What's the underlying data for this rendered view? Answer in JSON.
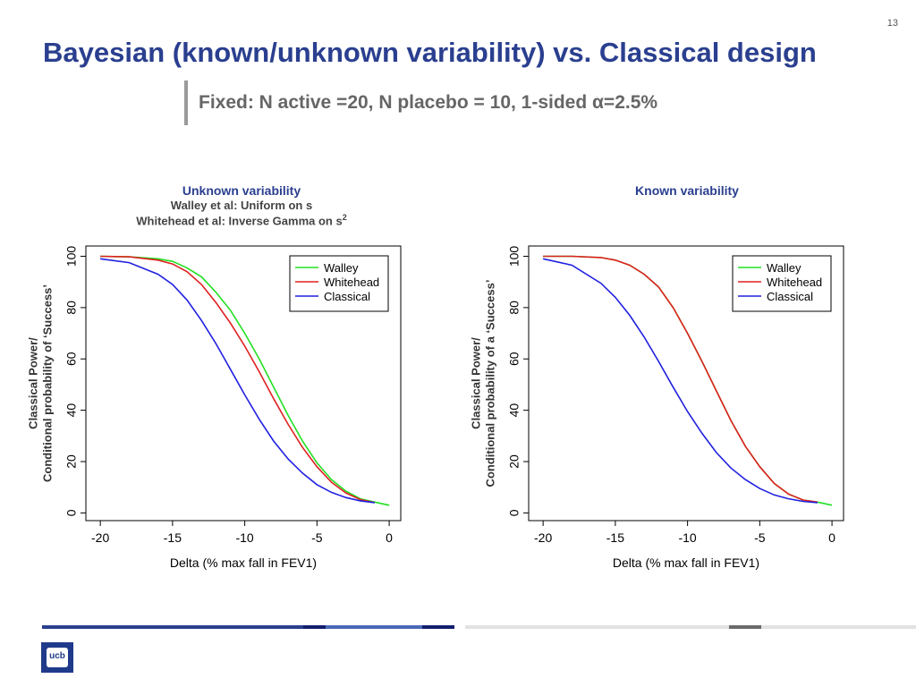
{
  "slide": {
    "number": "13",
    "title": "Bayesian (known/unknown variability) vs. Classical design",
    "subtitle": "Fixed: N active =20, N placebo = 10, 1-sided α=2.5%",
    "logo_text": "ucb"
  },
  "chart_data": [
    {
      "type": "line",
      "title": "Unknown variability",
      "subtitle_lines": [
        "Walley et al: Uniform on s",
        "Whitehead et al: Inverse Gamma on s"
      ],
      "subtitle_superscript": "2",
      "xlabel": "Delta (% max fall in FEV1)",
      "ylabel_lines": [
        "Classical Power/",
        "Conditional probability of ‘Success’"
      ],
      "xlim": [
        -21,
        0.8
      ],
      "ylim": [
        -3,
        104
      ],
      "xticks": [
        -20,
        -15,
        -10,
        -5,
        0
      ],
      "yticks": [
        0,
        20,
        40,
        60,
        80,
        100
      ],
      "legend_position": "top-right",
      "x": [
        -20,
        -18,
        -16,
        -15,
        -14,
        -13,
        -12,
        -11,
        -10,
        -9,
        -8,
        -7,
        -6,
        -5,
        -4,
        -3,
        -2,
        -1,
        0
      ],
      "series": [
        {
          "name": "Walley",
          "color": "#22e022",
          "values": [
            100,
            99.8,
            99,
            98,
            95.5,
            92,
            86,
            79,
            70,
            60,
            49,
            38,
            28,
            19.5,
            13,
            8.5,
            5.5,
            4.2,
            3
          ]
        },
        {
          "name": "Whitehead",
          "color": "#e02020",
          "values": [
            100,
            99.8,
            98.5,
            97,
            94,
            89,
            82,
            74,
            65,
            55,
            44.5,
            34.5,
            25.5,
            18,
            12,
            7.8,
            5.2,
            4,
            null
          ]
        },
        {
          "name": "Classical",
          "color": "#2020e0",
          "values": [
            99,
            97.5,
            93,
            89,
            83,
            75,
            66,
            56,
            46,
            36.5,
            28,
            21,
            15.5,
            11,
            8,
            6,
            4.7,
            4,
            null
          ]
        }
      ]
    },
    {
      "type": "line",
      "title": "Known variability",
      "xlabel": "Delta (% max fall in FEV1)",
      "ylabel_lines": [
        "Classical Power/",
        "Conditional probability of a ‘Success’"
      ],
      "xlim": [
        -21,
        0.8
      ],
      "ylim": [
        -3,
        104
      ],
      "xticks": [
        -20,
        -15,
        -10,
        -5,
        0
      ],
      "yticks": [
        0,
        20,
        40,
        60,
        80,
        100
      ],
      "legend_position": "top-right",
      "x": [
        -20,
        -18,
        -16,
        -15,
        -14,
        -13,
        -12,
        -11,
        -10,
        -9,
        -8,
        -7,
        -6,
        -5,
        -4,
        -3,
        -2,
        -1,
        0
      ],
      "series": [
        {
          "name": "Walley",
          "color": "#22e022",
          "values": [
            100,
            100,
            99.5,
            98.5,
            96.5,
            93,
            88,
            80,
            70,
            59,
            47.5,
            36,
            26,
            18,
            11.5,
            7.3,
            5,
            4.2,
            3
          ]
        },
        {
          "name": "Whitehead",
          "color": "#e02020",
          "values": [
            100,
            100,
            99.5,
            98.5,
            96.5,
            93,
            88,
            80,
            70,
            59,
            47.5,
            36,
            26,
            18,
            11.5,
            7.3,
            5,
            4.2,
            null
          ]
        },
        {
          "name": "Classical",
          "color": "#2020e0",
          "values": [
            99,
            96.5,
            89.5,
            84,
            77,
            68.5,
            59,
            49,
            39.5,
            31,
            23.5,
            17.5,
            13,
            9.5,
            7,
            5.5,
            4.5,
            4,
            null
          ]
        }
      ]
    }
  ]
}
